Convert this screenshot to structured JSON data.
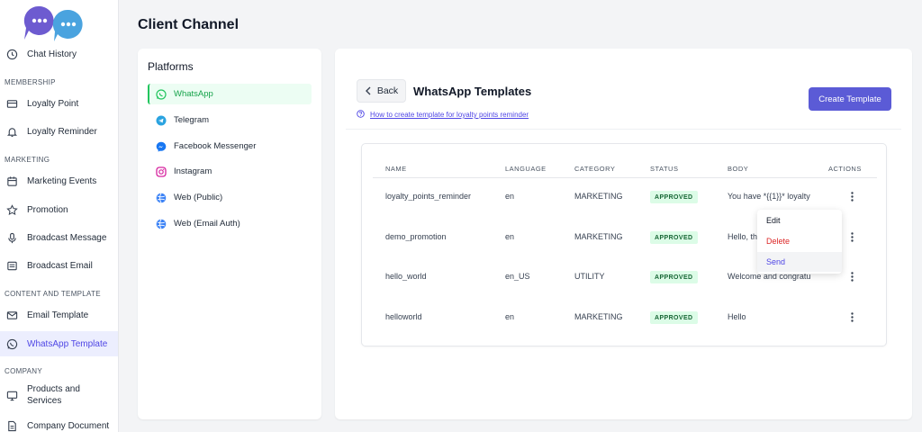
{
  "page_title": "Client Channel",
  "sidebar": {
    "items": [
      {
        "label": "Chat History",
        "icon": "clock-icon"
      },
      {
        "label": "Loyalty Point",
        "icon": "card-icon"
      },
      {
        "label": "Loyalty Reminder",
        "icon": "bell-icon"
      },
      {
        "label": "Marketing Events",
        "icon": "calendar-icon"
      },
      {
        "label": "Promotion",
        "icon": "star-icon"
      },
      {
        "label": "Broadcast Message",
        "icon": "mic-icon"
      },
      {
        "label": "Broadcast Email",
        "icon": "newspaper-icon"
      },
      {
        "label": "Email Template",
        "icon": "mail-icon"
      },
      {
        "label": "WhatsApp Template",
        "icon": "whatsapp-icon"
      },
      {
        "label": "Products and Services",
        "icon": "monitor-icon"
      },
      {
        "label": "Company Document",
        "icon": "document-icon"
      }
    ],
    "sections": {
      "membership": "MEMBERSHIP",
      "marketing": "MARKETING",
      "content": "CONTENT AND TEMPLATE",
      "company": "COMPANY"
    }
  },
  "platforms": {
    "title": "Platforms",
    "items": [
      {
        "label": "WhatsApp",
        "icon": "whatsapp-icon"
      },
      {
        "label": "Telegram",
        "icon": "telegram-icon"
      },
      {
        "label": "Facebook Messenger",
        "icon": "messenger-icon"
      },
      {
        "label": "Instagram",
        "icon": "instagram-icon"
      },
      {
        "label": "Web (Public)",
        "icon": "globe-icon"
      },
      {
        "label": "Web (Email Auth)",
        "icon": "globe-icon"
      }
    ]
  },
  "main": {
    "back_label": "Back",
    "title": "WhatsApp Templates",
    "help_link": "How to create template for loyalty points reminder",
    "create_label": "Create Template"
  },
  "table": {
    "headers": [
      "NAME",
      "LANGUAGE",
      "CATEGORY",
      "STATUS",
      "BODY",
      "ACTIONS"
    ],
    "rows": [
      {
        "name": "loyalty_points_reminder",
        "language": "en",
        "category": "MARKETING",
        "status": "APPROVED",
        "body": "You have *{{1}}* loyalty"
      },
      {
        "name": "demo_promotion",
        "language": "en",
        "category": "MARKETING",
        "status": "APPROVED",
        "body": "Hello, th"
      },
      {
        "name": "hello_world",
        "language": "en_US",
        "category": "UTILITY",
        "status": "APPROVED",
        "body": "Welcome and congratu"
      },
      {
        "name": "helloworld",
        "language": "en",
        "category": "MARKETING",
        "status": "APPROVED",
        "body": "Hello"
      }
    ]
  },
  "action_menu": {
    "items": [
      {
        "label": "Edit",
        "color": "#111827"
      },
      {
        "label": "Delete",
        "color": "#dc2626"
      },
      {
        "label": "Send",
        "color": "#4f46e5"
      }
    ]
  },
  "colors": {
    "accent": "#5b5bd6",
    "whatsapp_green": "#22c55e",
    "approved_bg": "#dcfce7"
  }
}
